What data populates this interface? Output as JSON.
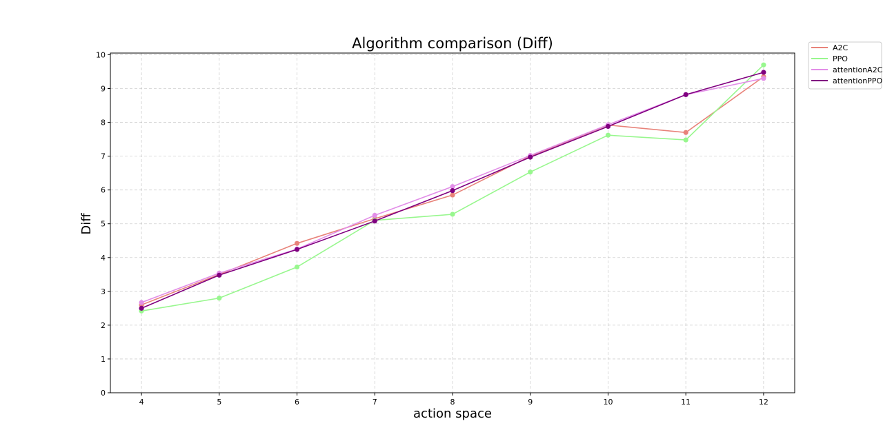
{
  "chart_data": {
    "type": "line",
    "title": "Algorithm comparison (Diff)",
    "xlabel": "action space",
    "ylabel": "Diff",
    "x": [
      4,
      5,
      6,
      7,
      8,
      9,
      10,
      11,
      12
    ],
    "xlim": [
      3.6,
      12.4
    ],
    "ylim": [
      0,
      10.05
    ],
    "xticks": [
      4,
      5,
      6,
      7,
      8,
      9,
      10,
      11,
      12
    ],
    "yticks": [
      0,
      1,
      2,
      3,
      4,
      5,
      6,
      7,
      8,
      9,
      10
    ],
    "grid": true,
    "legend_position": "outside-top-right",
    "series": [
      {
        "name": "A2C",
        "color": "#e8837a",
        "values": [
          2.6,
          3.5,
          4.42,
          5.15,
          5.85,
          7.0,
          7.92,
          7.7,
          9.35
        ]
      },
      {
        "name": "PPO",
        "color": "#98f78e",
        "values": [
          2.42,
          2.8,
          3.72,
          5.1,
          5.28,
          6.53,
          7.62,
          7.48,
          9.7
        ]
      },
      {
        "name": "attentionA2C",
        "color": "#e28ee8",
        "values": [
          2.67,
          3.54,
          4.25,
          5.25,
          6.1,
          7.02,
          7.93,
          8.82,
          9.3
        ]
      },
      {
        "name": "attentionPPO",
        "color": "#800080",
        "values": [
          2.5,
          3.48,
          4.24,
          5.08,
          5.98,
          6.97,
          7.88,
          8.82,
          9.48
        ]
      }
    ]
  }
}
